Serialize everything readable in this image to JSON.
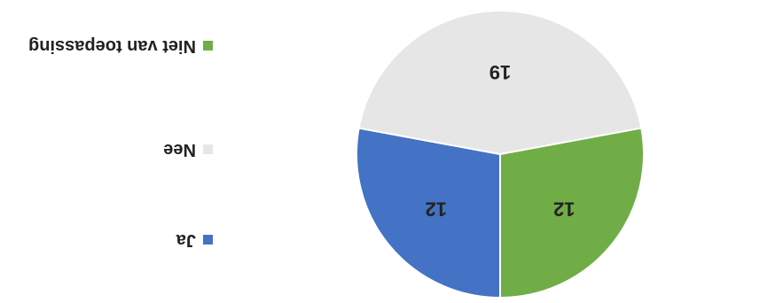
{
  "chart_data": {
    "type": "pie",
    "title": "",
    "slices": [
      {
        "label": "Ja",
        "value": 12,
        "color": "#4472C4"
      },
      {
        "label": "Nee",
        "value": 19,
        "color": "#E7E6E6"
      },
      {
        "label": "Niet van toepassing",
        "value": 12,
        "color": "#70AD47"
      }
    ],
    "legend_position": "right",
    "data_labels": true
  }
}
